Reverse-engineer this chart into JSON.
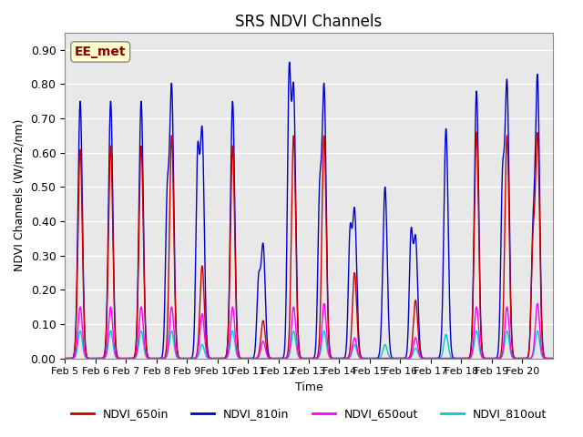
{
  "title": "SRS NDVI Channels",
  "xlabel": "Time",
  "ylabel": "NDVI Channels (W/m2/nm)",
  "ylim": [
    0.0,
    0.95
  ],
  "yticks": [
    0.0,
    0.1,
    0.2,
    0.3,
    0.4,
    0.5,
    0.6,
    0.7,
    0.8,
    0.9
  ],
  "bg_color": "#e8e8e8",
  "colors": {
    "NDVI_650in": "#cc0000",
    "NDVI_810in": "#0000cc",
    "NDVI_650out": "#ff00ff",
    "NDVI_810out": "#00cccc"
  },
  "annotation_text": "EE_met",
  "annotation_color": "#8b0000",
  "annotation_bg": "#ffffcc",
  "days": [
    "Feb 5",
    "Feb 6",
    "Feb 7",
    "Feb 8",
    "Feb 9",
    "Feb 10",
    "Feb 11",
    "Feb 12",
    "Feb 13",
    "Feb 14",
    "Feb 15",
    "Feb 16",
    "Feb 17",
    "Feb 18",
    "Feb 19",
    "Feb 20"
  ],
  "peaks_810in": [
    0.75,
    0.75,
    0.75,
    0.79,
    0.66,
    0.75,
    0.33,
    0.78,
    0.79,
    0.43,
    0.5,
    0.35,
    0.67,
    0.78,
    0.8,
    0.82
  ],
  "peaks_650in": [
    0.61,
    0.62,
    0.62,
    0.65,
    0.27,
    0.62,
    0.11,
    0.65,
    0.65,
    0.25,
    0.0,
    0.17,
    0.0,
    0.66,
    0.65,
    0.65
  ],
  "peaks_650out": [
    0.15,
    0.15,
    0.15,
    0.15,
    0.13,
    0.15,
    0.05,
    0.15,
    0.16,
    0.06,
    0.0,
    0.06,
    0.0,
    0.15,
    0.15,
    0.16
  ],
  "peaks_810out": [
    0.08,
    0.08,
    0.08,
    0.08,
    0.04,
    0.08,
    0.0,
    0.08,
    0.08,
    0.04,
    0.04,
    0.03,
    0.07,
    0.08,
    0.08,
    0.08
  ],
  "mid_810in": [
    0.0,
    0.0,
    0.0,
    0.42,
    0.55,
    0.0,
    0.21,
    0.77,
    0.43,
    0.34,
    0.0,
    0.34,
    0.0,
    0.0,
    0.47,
    0.32
  ],
  "mid_650in": [
    0.0,
    0.0,
    0.0,
    0.0,
    0.0,
    0.0,
    0.0,
    0.0,
    0.0,
    0.0,
    0.0,
    0.0,
    0.0,
    0.0,
    0.0,
    0.3
  ]
}
